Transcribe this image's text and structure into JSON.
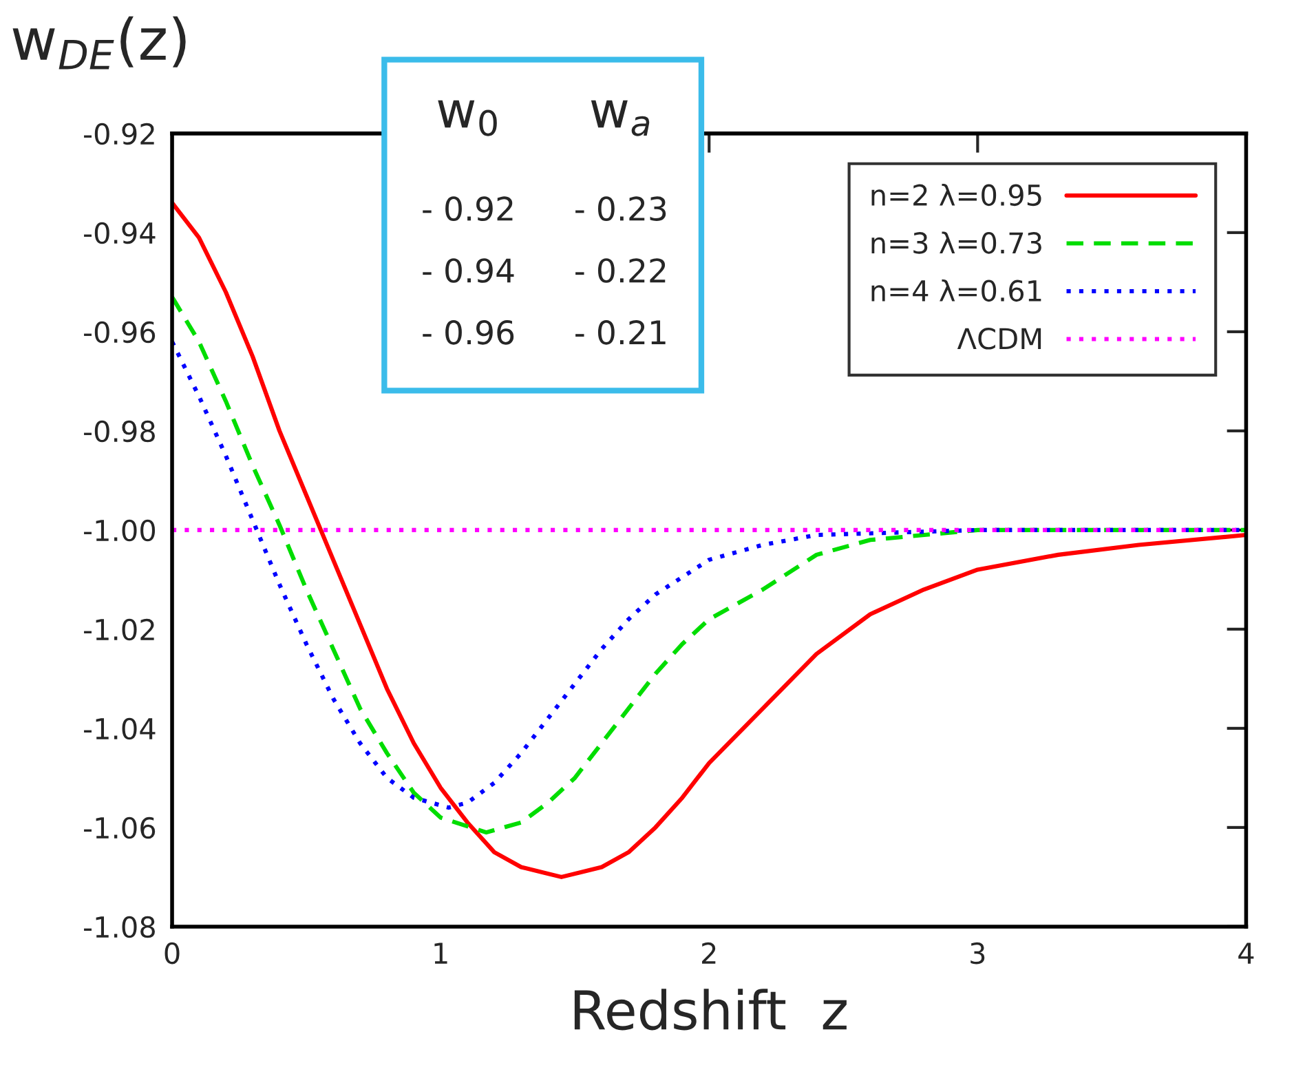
{
  "chart_data": {
    "type": "line",
    "xlabel": "Redshift  z",
    "ylabel": "w$_{DE}$(z)",
    "xlim": [
      0,
      4
    ],
    "xticks": [
      0,
      1,
      2,
      3,
      4
    ],
    "ylim": [
      -1.08,
      -0.92
    ],
    "yticks": [
      {
        "value": -1.08,
        "label": "-1.08"
      },
      {
        "value": -1.06,
        "label": "-1.06"
      },
      {
        "value": -1.04,
        "label": "-1.04"
      },
      {
        "value": -1.02,
        "label": "-1.02"
      },
      {
        "value": -1.0,
        "label": "-1.00"
      },
      {
        "value": -0.98,
        "label": "-0.98"
      },
      {
        "value": -0.96,
        "label": "-0.96"
      },
      {
        "value": -0.94,
        "label": "-0.94"
      },
      {
        "value": -0.92,
        "label": "-0.92"
      }
    ],
    "grid": false,
    "legend": "top right",
    "marker": "none",
    "annotations": [
      "w$_{0}$",
      "w$_{a}$",
      "- 0.92",
      "- 0.23",
      "- 0.94",
      "- 0.22",
      "- 0.96",
      "- 0.21"
    ],
    "series": [
      {
        "name": "n=2 λ=0.95",
        "color": "#ff0000",
        "line_style": "solid",
        "x": [
          0,
          0.1,
          0.2,
          0.3,
          0.4,
          0.5,
          0.6,
          0.7,
          0.8,
          0.9,
          1.0,
          1.1,
          1.2,
          1.3,
          1.45,
          1.6,
          1.7,
          1.8,
          1.9,
          2.0,
          2.2,
          2.4,
          2.6,
          2.8,
          3.0,
          3.3,
          3.6,
          4.0
        ],
        "values": [
          -0.934,
          -0.941,
          -0.952,
          -0.965,
          -0.98,
          -0.993,
          -1.006,
          -1.019,
          -1.032,
          -1.043,
          -1.052,
          -1.059,
          -1.065,
          -1.068,
          -1.07,
          -1.068,
          -1.065,
          -1.06,
          -1.054,
          -1.047,
          -1.036,
          -1.025,
          -1.017,
          -1.012,
          -1.008,
          -1.005,
          -1.003,
          -1.001
        ]
      },
      {
        "name": "n=3 λ=0.73",
        "color": "#00dd00",
        "line_style": "dashed",
        "x": [
          0,
          0.1,
          0.2,
          0.3,
          0.4,
          0.5,
          0.6,
          0.7,
          0.8,
          0.9,
          1.0,
          1.17,
          1.3,
          1.4,
          1.5,
          1.6,
          1.7,
          1.8,
          1.9,
          2.0,
          2.2,
          2.4,
          2.6,
          3.0,
          4.0
        ],
        "values": [
          -0.953,
          -0.962,
          -0.974,
          -0.987,
          -0.999,
          -1.012,
          -1.024,
          -1.036,
          -1.045,
          -1.053,
          -1.058,
          -1.061,
          -1.059,
          -1.055,
          -1.05,
          -1.043,
          -1.036,
          -1.029,
          -1.023,
          -1.018,
          -1.012,
          -1.005,
          -1.002,
          -1.0,
          -1.0
        ]
      },
      {
        "name": "n=4 λ=0.61",
        "color": "#0000ff",
        "line_style": "dotted",
        "x": [
          0,
          0.1,
          0.2,
          0.3,
          0.4,
          0.5,
          0.6,
          0.7,
          0.8,
          0.9,
          1.03,
          1.1,
          1.2,
          1.3,
          1.4,
          1.5,
          1.6,
          1.7,
          1.8,
          2.0,
          2.2,
          2.4,
          3.0,
          4.0
        ],
        "values": [
          -0.962,
          -0.973,
          -0.985,
          -0.998,
          -1.011,
          -1.023,
          -1.034,
          -1.043,
          -1.05,
          -1.054,
          -1.056,
          -1.055,
          -1.051,
          -1.045,
          -1.038,
          -1.031,
          -1.024,
          -1.018,
          -1.013,
          -1.006,
          -1.003,
          -1.001,
          -1.0,
          -1.0
        ]
      },
      {
        "name": "ΛCDM",
        "color": "#ff00ff",
        "line_style": "dotted",
        "x": [
          0,
          4
        ],
        "values": [
          -1.0,
          -1.0
        ]
      }
    ]
  }
}
